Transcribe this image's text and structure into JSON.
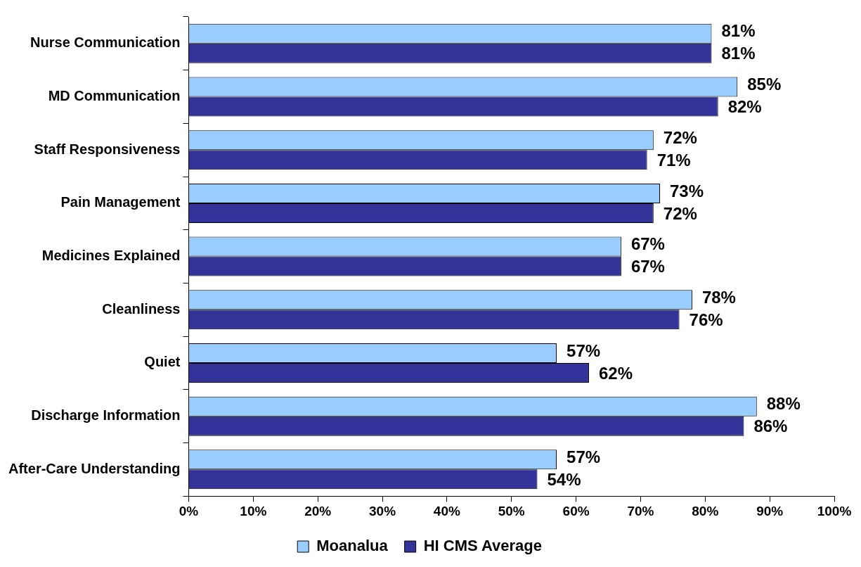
{
  "chart_data": {
    "type": "bar",
    "orientation": "horizontal",
    "categories": [
      "Nurse Communication",
      "MD Communication",
      "Staff Responsiveness",
      "Pain Management",
      "Medicines Explained",
      "Cleanliness",
      "Quiet",
      "Discharge Information",
      "After-Care Understanding"
    ],
    "series": [
      {
        "name": "Moanalua",
        "color": "#99ccff",
        "values": [
          81,
          85,
          72,
          73,
          67,
          78,
          57,
          88,
          57
        ],
        "value_labels": [
          "81%",
          "85%",
          "72%",
          "73%",
          "67%",
          "78%",
          "57%",
          "88%",
          "57%"
        ]
      },
      {
        "name": "HI CMS Average",
        "color": "#333399",
        "values": [
          81,
          82,
          71,
          72,
          67,
          76,
          62,
          86,
          54
        ],
        "value_labels": [
          "81%",
          "82%",
          "71%",
          "72%",
          "67%",
          "76%",
          "62%",
          "86%",
          "54%"
        ]
      }
    ],
    "xlim": [
      0,
      100
    ],
    "xticks": [
      {
        "value": 0,
        "label": "0%"
      },
      {
        "value": 10,
        "label": "10%"
      },
      {
        "value": 20,
        "label": "20%"
      },
      {
        "value": 30,
        "label": "30%"
      },
      {
        "value": 40,
        "label": "40%"
      },
      {
        "value": 50,
        "label": "50%"
      },
      {
        "value": 60,
        "label": "60%"
      },
      {
        "value": 70,
        "label": "70%"
      },
      {
        "value": 80,
        "label": "80%"
      },
      {
        "value": 90,
        "label": "90%"
      },
      {
        "value": 100,
        "label": "100%"
      }
    ],
    "grid": false,
    "legend": "bottom"
  }
}
